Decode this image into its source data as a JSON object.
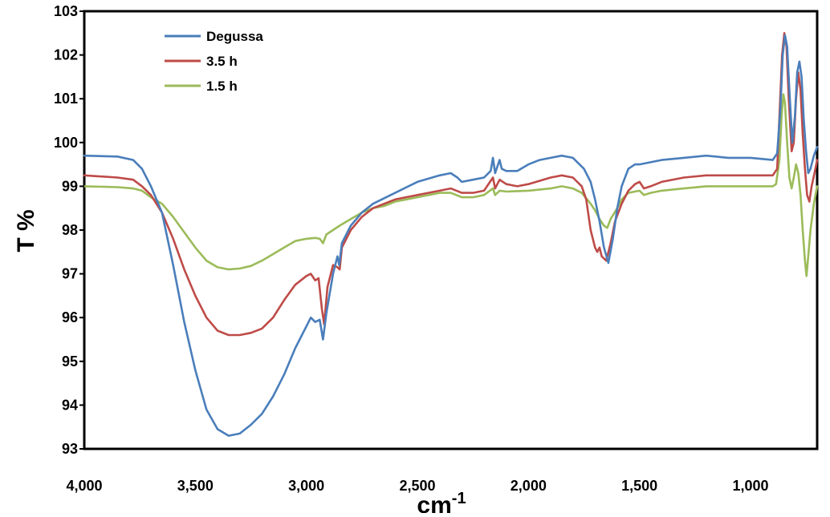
{
  "chart_data": {
    "type": "line",
    "title": "",
    "xlabel": "cm",
    "xlabel_sup": "-1",
    "ylabel": "T %",
    "xlim": [
      4000,
      700
    ],
    "ylim": [
      93,
      103
    ],
    "x_ticks": [
      4000,
      3500,
      3000,
      2500,
      2000,
      1500,
      1000
    ],
    "x_tick_labels": [
      "4,000",
      "3,500",
      "3,000",
      "2,500",
      "2,000",
      "1,500",
      "1,000"
    ],
    "y_ticks": [
      93,
      94,
      95,
      96,
      97,
      98,
      99,
      100,
      101,
      102,
      103
    ],
    "y_tick_labels": [
      "93",
      "94",
      "95",
      "96",
      "97",
      "98",
      "99",
      "100",
      "101",
      "102",
      "103"
    ],
    "grid": false,
    "legend_position": "top-left",
    "series": [
      {
        "name": "Degussa",
        "color": "#4a7ebb",
        "points": [
          [
            4000,
            99.7
          ],
          [
            3850,
            99.68
          ],
          [
            3780,
            99.6
          ],
          [
            3740,
            99.4
          ],
          [
            3700,
            99.0
          ],
          [
            3650,
            98.4
          ],
          [
            3600,
            97.2
          ],
          [
            3550,
            95.9
          ],
          [
            3500,
            94.8
          ],
          [
            3450,
            93.9
          ],
          [
            3400,
            93.45
          ],
          [
            3350,
            93.3
          ],
          [
            3300,
            93.35
          ],
          [
            3250,
            93.55
          ],
          [
            3200,
            93.8
          ],
          [
            3150,
            94.2
          ],
          [
            3100,
            94.7
          ],
          [
            3050,
            95.3
          ],
          [
            3000,
            95.8
          ],
          [
            2980,
            96.0
          ],
          [
            2960,
            95.9
          ],
          [
            2940,
            95.95
          ],
          [
            2925,
            95.5
          ],
          [
            2910,
            96.1
          ],
          [
            2880,
            97.0
          ],
          [
            2860,
            97.4
          ],
          [
            2852,
            97.2
          ],
          [
            2840,
            97.7
          ],
          [
            2800,
            98.1
          ],
          [
            2750,
            98.4
          ],
          [
            2700,
            98.6
          ],
          [
            2600,
            98.85
          ],
          [
            2500,
            99.1
          ],
          [
            2400,
            99.25
          ],
          [
            2350,
            99.3
          ],
          [
            2320,
            99.2
          ],
          [
            2300,
            99.1
          ],
          [
            2250,
            99.15
          ],
          [
            2200,
            99.2
          ],
          [
            2170,
            99.35
          ],
          [
            2160,
            99.65
          ],
          [
            2150,
            99.3
          ],
          [
            2130,
            99.6
          ],
          [
            2120,
            99.4
          ],
          [
            2100,
            99.35
          ],
          [
            2050,
            99.35
          ],
          [
            2000,
            99.5
          ],
          [
            1950,
            99.6
          ],
          [
            1900,
            99.65
          ],
          [
            1850,
            99.7
          ],
          [
            1800,
            99.65
          ],
          [
            1750,
            99.4
          ],
          [
            1720,
            99.1
          ],
          [
            1700,
            98.7
          ],
          [
            1680,
            98.2
          ],
          [
            1660,
            97.6
          ],
          [
            1640,
            97.25
          ],
          [
            1620,
            97.8
          ],
          [
            1600,
            98.5
          ],
          [
            1580,
            99.0
          ],
          [
            1550,
            99.4
          ],
          [
            1520,
            99.5
          ],
          [
            1500,
            99.5
          ],
          [
            1450,
            99.55
          ],
          [
            1400,
            99.6
          ],
          [
            1300,
            99.65
          ],
          [
            1200,
            99.7
          ],
          [
            1100,
            99.65
          ],
          [
            1000,
            99.65
          ],
          [
            900,
            99.6
          ],
          [
            880,
            99.75
          ],
          [
            865,
            100.8
          ],
          [
            855,
            102.0
          ],
          [
            845,
            102.45
          ],
          [
            835,
            102.2
          ],
          [
            825,
            101.2
          ],
          [
            812,
            100.0
          ],
          [
            800,
            100.6
          ],
          [
            790,
            101.6
          ],
          [
            780,
            101.85
          ],
          [
            770,
            101.5
          ],
          [
            760,
            100.5
          ],
          [
            750,
            99.8
          ],
          [
            740,
            99.3
          ],
          [
            730,
            99.4
          ],
          [
            715,
            99.7
          ],
          [
            700,
            99.9
          ]
        ]
      },
      {
        "name": "3.5 h",
        "color": "#be4b48",
        "points": [
          [
            4000,
            99.25
          ],
          [
            3850,
            99.2
          ],
          [
            3780,
            99.15
          ],
          [
            3740,
            99.0
          ],
          [
            3700,
            98.8
          ],
          [
            3650,
            98.4
          ],
          [
            3600,
            97.8
          ],
          [
            3550,
            97.1
          ],
          [
            3500,
            96.5
          ],
          [
            3450,
            96.0
          ],
          [
            3400,
            95.7
          ],
          [
            3350,
            95.6
          ],
          [
            3300,
            95.6
          ],
          [
            3250,
            95.65
          ],
          [
            3200,
            95.75
          ],
          [
            3150,
            96.0
          ],
          [
            3100,
            96.4
          ],
          [
            3050,
            96.75
          ],
          [
            3000,
            96.95
          ],
          [
            2980,
            97.0
          ],
          [
            2960,
            96.85
          ],
          [
            2945,
            96.9
          ],
          [
            2930,
            96.2
          ],
          [
            2920,
            95.85
          ],
          [
            2905,
            96.7
          ],
          [
            2880,
            97.2
          ],
          [
            2860,
            97.15
          ],
          [
            2850,
            97.1
          ],
          [
            2840,
            97.6
          ],
          [
            2800,
            98.0
          ],
          [
            2750,
            98.3
          ],
          [
            2700,
            98.5
          ],
          [
            2600,
            98.7
          ],
          [
            2500,
            98.8
          ],
          [
            2400,
            98.9
          ],
          [
            2350,
            98.95
          ],
          [
            2300,
            98.85
          ],
          [
            2250,
            98.85
          ],
          [
            2200,
            98.9
          ],
          [
            2160,
            99.2
          ],
          [
            2150,
            98.95
          ],
          [
            2130,
            99.15
          ],
          [
            2100,
            99.05
          ],
          [
            2050,
            99.0
          ],
          [
            2000,
            99.05
          ],
          [
            1900,
            99.2
          ],
          [
            1850,
            99.25
          ],
          [
            1800,
            99.2
          ],
          [
            1760,
            99.0
          ],
          [
            1740,
            98.7
          ],
          [
            1720,
            98.0
          ],
          [
            1700,
            97.6
          ],
          [
            1690,
            97.5
          ],
          [
            1680,
            97.6
          ],
          [
            1670,
            97.4
          ],
          [
            1650,
            97.3
          ],
          [
            1630,
            97.7
          ],
          [
            1610,
            98.2
          ],
          [
            1580,
            98.6
          ],
          [
            1550,
            98.9
          ],
          [
            1520,
            99.05
          ],
          [
            1500,
            99.1
          ],
          [
            1480,
            98.95
          ],
          [
            1450,
            99.0
          ],
          [
            1400,
            99.1
          ],
          [
            1300,
            99.2
          ],
          [
            1200,
            99.25
          ],
          [
            1100,
            99.25
          ],
          [
            1000,
            99.25
          ],
          [
            900,
            99.25
          ],
          [
            880,
            99.4
          ],
          [
            868,
            100.8
          ],
          [
            858,
            102.0
          ],
          [
            848,
            102.5
          ],
          [
            838,
            102.2
          ],
          [
            828,
            101.0
          ],
          [
            815,
            99.8
          ],
          [
            805,
            100.0
          ],
          [
            795,
            101.0
          ],
          [
            785,
            101.6
          ],
          [
            775,
            101.2
          ],
          [
            765,
            100.2
          ],
          [
            755,
            99.4
          ],
          [
            745,
            98.8
          ],
          [
            735,
            98.65
          ],
          [
            725,
            99.0
          ],
          [
            712,
            99.3
          ],
          [
            700,
            99.6
          ]
        ]
      },
      {
        "name": "1.5 h",
        "color": "#9bbb59",
        "points": [
          [
            4000,
            99.0
          ],
          [
            3850,
            98.98
          ],
          [
            3780,
            98.95
          ],
          [
            3740,
            98.9
          ],
          [
            3700,
            98.75
          ],
          [
            3650,
            98.6
          ],
          [
            3600,
            98.3
          ],
          [
            3550,
            97.95
          ],
          [
            3500,
            97.6
          ],
          [
            3450,
            97.3
          ],
          [
            3400,
            97.15
          ],
          [
            3350,
            97.1
          ],
          [
            3300,
            97.12
          ],
          [
            3250,
            97.18
          ],
          [
            3200,
            97.3
          ],
          [
            3150,
            97.45
          ],
          [
            3100,
            97.6
          ],
          [
            3050,
            97.75
          ],
          [
            3000,
            97.8
          ],
          [
            2960,
            97.82
          ],
          [
            2940,
            97.8
          ],
          [
            2925,
            97.7
          ],
          [
            2910,
            97.9
          ],
          [
            2880,
            98.0
          ],
          [
            2850,
            98.1
          ],
          [
            2800,
            98.25
          ],
          [
            2750,
            98.4
          ],
          [
            2700,
            98.5
          ],
          [
            2650,
            98.55
          ],
          [
            2600,
            98.65
          ],
          [
            2500,
            98.75
          ],
          [
            2400,
            98.85
          ],
          [
            2350,
            98.85
          ],
          [
            2300,
            98.75
          ],
          [
            2250,
            98.75
          ],
          [
            2200,
            98.8
          ],
          [
            2160,
            98.95
          ],
          [
            2150,
            98.8
          ],
          [
            2130,
            98.9
          ],
          [
            2100,
            98.88
          ],
          [
            2000,
            98.9
          ],
          [
            1900,
            98.95
          ],
          [
            1850,
            99.0
          ],
          [
            1800,
            98.95
          ],
          [
            1760,
            98.85
          ],
          [
            1720,
            98.6
          ],
          [
            1700,
            98.45
          ],
          [
            1680,
            98.25
          ],
          [
            1660,
            98.1
          ],
          [
            1645,
            98.05
          ],
          [
            1630,
            98.25
          ],
          [
            1600,
            98.5
          ],
          [
            1580,
            98.7
          ],
          [
            1550,
            98.85
          ],
          [
            1500,
            98.9
          ],
          [
            1480,
            98.8
          ],
          [
            1450,
            98.85
          ],
          [
            1400,
            98.9
          ],
          [
            1300,
            98.95
          ],
          [
            1200,
            99.0
          ],
          [
            1100,
            99.0
          ],
          [
            1000,
            99.0
          ],
          [
            900,
            99.0
          ],
          [
            885,
            99.05
          ],
          [
            870,
            99.6
          ],
          [
            860,
            100.6
          ],
          [
            852,
            101.1
          ],
          [
            845,
            100.9
          ],
          [
            835,
            100.0
          ],
          [
            825,
            99.2
          ],
          [
            815,
            98.95
          ],
          [
            805,
            99.2
          ],
          [
            795,
            99.5
          ],
          [
            785,
            99.3
          ],
          [
            775,
            98.8
          ],
          [
            765,
            98.0
          ],
          [
            755,
            97.3
          ],
          [
            748,
            96.95
          ],
          [
            740,
            97.4
          ],
          [
            730,
            98.0
          ],
          [
            715,
            98.6
          ],
          [
            700,
            99.0
          ]
        ]
      }
    ]
  }
}
